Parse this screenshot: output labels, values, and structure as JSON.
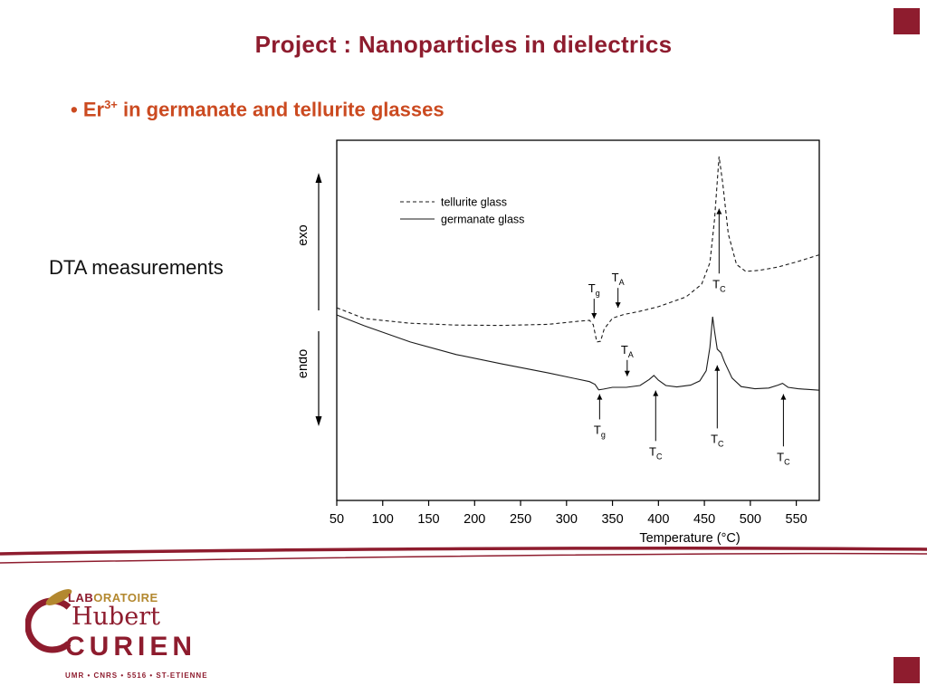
{
  "slide": {
    "title": "Project : Nanoparticles in dielectrics",
    "bullet_marker": "•",
    "bullet_er": "Er",
    "bullet_sup": "3+",
    "bullet_rest": " in germanate and tellurite glasses",
    "side_label": "DTA measurements"
  },
  "colors": {
    "maroon": "#8e1c2e",
    "orange": "#cb4a20",
    "gold": "#b3882f"
  },
  "logo": {
    "lab_bold": "LAB",
    "lab_rest": "ORATOIRE",
    "first_name": "Hubert",
    "last_name": "CURIEN",
    "affiliation": "UMR • CNRS • 5516 • ST-ETIENNE"
  },
  "chart_data": {
    "type": "line",
    "title": "",
    "xlabel": "Temperature (°C)",
    "x_ticks": [
      50,
      100,
      150,
      200,
      250,
      300,
      350,
      400,
      450,
      500,
      550
    ],
    "xlim": [
      50,
      575
    ],
    "ylim": [
      0,
      100
    ],
    "grid": false,
    "legend_position": "upper-left-inside",
    "y_axis_labels": [
      "exo",
      "endo"
    ],
    "series": [
      {
        "name": "tellurite glass",
        "style": "dashed",
        "points": [
          [
            50,
            53.5
          ],
          [
            80,
            50.5
          ],
          [
            130,
            49.2
          ],
          [
            180,
            48.7
          ],
          [
            230,
            48.6
          ],
          [
            280,
            48.9
          ],
          [
            315,
            49.8
          ],
          [
            325,
            50.0
          ],
          [
            329,
            48.8
          ],
          [
            333,
            44.0
          ],
          [
            337,
            44.2
          ],
          [
            341,
            47.6
          ],
          [
            350,
            50.6
          ],
          [
            362,
            51.6
          ],
          [
            378,
            52.4
          ],
          [
            400,
            53.8
          ],
          [
            430,
            56.5
          ],
          [
            447,
            60.0
          ],
          [
            456,
            66.0
          ],
          [
            461,
            78.0
          ],
          [
            466,
            95.5
          ],
          [
            470,
            88.0
          ],
          [
            476,
            74.0
          ],
          [
            485,
            65.5
          ],
          [
            495,
            63.6
          ],
          [
            510,
            63.9
          ],
          [
            530,
            64.8
          ],
          [
            550,
            66.2
          ],
          [
            575,
            68.2
          ]
        ]
      },
      {
        "name": "germanate glass",
        "style": "solid",
        "points": [
          [
            50,
            51.5
          ],
          [
            80,
            48.5
          ],
          [
            130,
            44.0
          ],
          [
            180,
            40.5
          ],
          [
            230,
            37.9
          ],
          [
            280,
            35.4
          ],
          [
            310,
            33.8
          ],
          [
            325,
            33.0
          ],
          [
            331,
            32.2
          ],
          [
            335,
            30.7
          ],
          [
            340,
            30.9
          ],
          [
            350,
            31.4
          ],
          [
            365,
            31.4
          ],
          [
            380,
            31.9
          ],
          [
            390,
            33.6
          ],
          [
            395,
            34.7
          ],
          [
            400,
            33.4
          ],
          [
            408,
            31.9
          ],
          [
            420,
            31.5
          ],
          [
            435,
            32.0
          ],
          [
            445,
            33.2
          ],
          [
            452,
            36.0
          ],
          [
            456,
            42.5
          ],
          [
            459,
            51.0
          ],
          [
            461,
            47.0
          ],
          [
            464,
            42.0
          ],
          [
            468,
            41.0
          ],
          [
            472,
            38.4
          ],
          [
            480,
            34.0
          ],
          [
            490,
            31.6
          ],
          [
            505,
            31.0
          ],
          [
            520,
            31.2
          ],
          [
            530,
            32.0
          ],
          [
            535,
            32.5
          ],
          [
            541,
            31.4
          ],
          [
            552,
            31.0
          ],
          [
            575,
            30.6
          ]
        ]
      }
    ],
    "annotations": [
      {
        "curve": "tellurite glass",
        "label": "T",
        "sub": "g",
        "t": 330,
        "dir": "down",
        "y_from": 56,
        "y_to": 50.5
      },
      {
        "curve": "tellurite glass",
        "label": "T",
        "sub": "A",
        "t": 356,
        "dir": "down",
        "y_from": 59,
        "y_to": 53.5
      },
      {
        "curve": "tellurite glass",
        "label": "T",
        "sub": "C",
        "t": 466,
        "dir": "up",
        "y_from": 63,
        "y_to": 81
      },
      {
        "curve": "germanate glass",
        "label": "T",
        "sub": "A",
        "t": 366,
        "dir": "down",
        "y_from": 39,
        "y_to": 34.5
      },
      {
        "curve": "germanate glass",
        "label": "T",
        "sub": "g",
        "t": 336,
        "dir": "up",
        "y_from": 22.5,
        "y_to": 29.5
      },
      {
        "curve": "germanate glass",
        "label": "T",
        "sub": "C",
        "t": 397,
        "dir": "up",
        "y_from": 16.5,
        "y_to": 30.5
      },
      {
        "curve": "germanate glass",
        "label": "T",
        "sub": "C",
        "t": 464,
        "dir": "up",
        "y_from": 20,
        "y_to": 37.5
      },
      {
        "curve": "germanate glass",
        "label": "T",
        "sub": "C",
        "t": 536,
        "dir": "up",
        "y_from": 15,
        "y_to": 29.5
      }
    ]
  }
}
